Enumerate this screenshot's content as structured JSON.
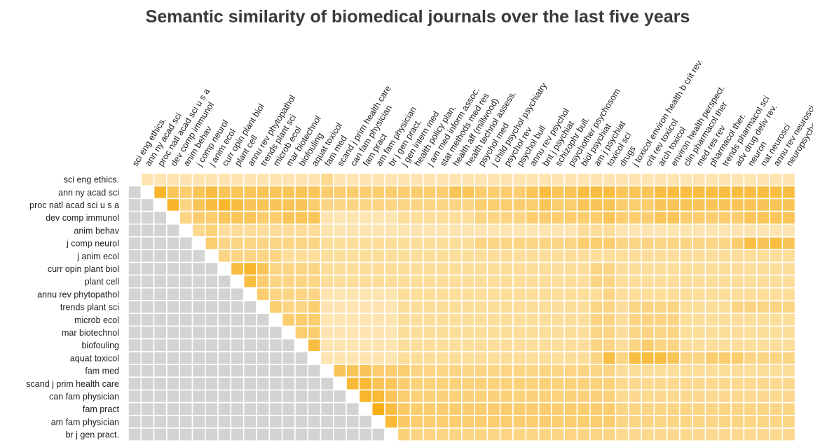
{
  "chart_data": {
    "type": "heatmap",
    "title": "Semantic similarity of biomedical journals over the last five years",
    "col_labels": [
      "sci eng ethics.",
      "ann ny acad sci",
      "proc natl acad sci u s a",
      "dev comp immunol",
      "anim behav",
      "j comp neurol",
      "j anim ecol",
      "curr opin plant biol",
      "plant cell",
      "annu rev phytopathol",
      "trends plant sci",
      "microb ecol",
      "mar biotechnol",
      "biofouling",
      "aquat toxicol",
      "fam med",
      "scand j prim health care",
      "can fam physician",
      "fam pract",
      "am fam physician",
      "br j gen pract.",
      "j gen intern med",
      "health policy plan.",
      "j am med inform assoc.",
      "stat methods med res",
      "health aff (millwood)",
      "health technol assess.",
      "psychol med",
      "j child psychol psychiatry",
      "psychol rev",
      "psychol bull",
      "annu rev psychol",
      "brit j psychiat",
      "schizophr bull.",
      "psychother psychosom",
      "biol psychiat",
      "am j psychiat",
      "toxicol sci",
      "drugs",
      "j toxicol environ health b crit rev.",
      "crit rev toxicol",
      "arch toxicol",
      "environ health perspect.",
      "clin pharmacol ther",
      "med res rev",
      "pharmacol ther.",
      "trends pharmacol sci",
      "adv drug deliv rev.",
      "neuron",
      "nat neurosci",
      "annu rev neurosci",
      "neuropsychopharmacology"
    ],
    "row_labels": [
      "sci eng ethics.",
      "ann ny acad sci",
      "proc natl acad sci u s a",
      "dev comp immunol",
      "anim behav",
      "j comp neurol",
      "j anim ecol",
      "curr opin plant biol",
      "plant cell",
      "annu rev phytopathol",
      "trends plant sci",
      "microb ecol",
      "mar biotechnol",
      "biofouling",
      "aquat toxicol",
      "fam med",
      "scand j prim health care",
      "can fam physician",
      "fam pract",
      "am fam physician",
      "br j gen pract."
    ],
    "matrix": [
      [
        null,
        0.2,
        0.2,
        0.2,
        0.2,
        0.2,
        0.2,
        0.2,
        0.2,
        0.2,
        0.2,
        0.2,
        0.2,
        0.2,
        0.2,
        0.35,
        0.2,
        0.2,
        0.2,
        0.2,
        0.2,
        0.2,
        0.2,
        0.2,
        0.2,
        0.2,
        0.2,
        0.2,
        0.2,
        0.2,
        0.2,
        0.2,
        0.2,
        0.2,
        0.2,
        0.2,
        0.2,
        0.2,
        0.2,
        0.2,
        0.2,
        0.2,
        0.2,
        0.2,
        0.2,
        0.2,
        0.2,
        0.2,
        0.2,
        0.2,
        0.2,
        0.2
      ],
      [
        null,
        null,
        0.8,
        0.6,
        0.5,
        0.6,
        0.7,
        0.6,
        0.6,
        0.6,
        0.6,
        0.6,
        0.6,
        0.6,
        0.6,
        0.5,
        0.5,
        0.5,
        0.5,
        0.5,
        0.5,
        0.5,
        0.5,
        0.5,
        0.5,
        0.6,
        0.6,
        0.5,
        0.5,
        0.5,
        0.5,
        0.6,
        0.7,
        0.6,
        0.6,
        0.7,
        0.7,
        0.7,
        0.6,
        0.6,
        0.6,
        0.7,
        0.7,
        0.7,
        0.7,
        0.7,
        0.7,
        0.7,
        0.7,
        0.7,
        0.7,
        0.7
      ],
      [
        null,
        null,
        null,
        0.8,
        0.4,
        0.6,
        0.7,
        0.8,
        0.7,
        0.6,
        0.6,
        0.6,
        0.6,
        0.6,
        0.5,
        0.4,
        0.4,
        0.4,
        0.4,
        0.4,
        0.4,
        0.4,
        0.4,
        0.4,
        0.4,
        0.4,
        0.4,
        0.5,
        0.5,
        0.5,
        0.5,
        0.5,
        0.6,
        0.5,
        0.5,
        0.6,
        0.6,
        0.6,
        0.5,
        0.5,
        0.5,
        0.6,
        0.6,
        0.6,
        0.6,
        0.6,
        0.6,
        0.6,
        0.6,
        0.6,
        0.6,
        0.6
      ],
      [
        null,
        null,
        null,
        null,
        0.4,
        0.5,
        0.5,
        0.6,
        0.6,
        0.6,
        0.5,
        0.5,
        0.6,
        0.6,
        0.6,
        0.2,
        0.2,
        0.2,
        0.2,
        0.2,
        0.2,
        0.3,
        0.3,
        0.3,
        0.3,
        0.3,
        0.3,
        0.4,
        0.4,
        0.4,
        0.4,
        0.5,
        0.5,
        0.5,
        0.5,
        0.5,
        0.5,
        0.6,
        0.5,
        0.5,
        0.5,
        0.6,
        0.6,
        0.5,
        0.5,
        0.5,
        0.5,
        0.5,
        0.6,
        0.6,
        0.6,
        0.6
      ],
      [
        null,
        null,
        null,
        null,
        null,
        0.35,
        0.45,
        0.3,
        0.3,
        0.3,
        0.3,
        0.3,
        0.3,
        0.3,
        0.3,
        0.2,
        0.2,
        0.2,
        0.2,
        0.2,
        0.2,
        0.2,
        0.2,
        0.2,
        0.2,
        0.2,
        0.2,
        0.2,
        0.2,
        0.2,
        0.2,
        0.2,
        0.2,
        0.2,
        0.2,
        0.3,
        0.3,
        0.3,
        0.2,
        0.2,
        0.2,
        0.2,
        0.2,
        0.2,
        0.2,
        0.2,
        0.2,
        0.2,
        0.2,
        0.2,
        0.2,
        0.2
      ],
      [
        null,
        null,
        null,
        null,
        null,
        null,
        0.5,
        0.4,
        0.4,
        0.4,
        0.4,
        0.4,
        0.4,
        0.4,
        0.4,
        0.3,
        0.3,
        0.3,
        0.3,
        0.3,
        0.3,
        0.3,
        0.3,
        0.3,
        0.3,
        0.3,
        0.3,
        0.4,
        0.4,
        0.4,
        0.4,
        0.4,
        0.4,
        0.4,
        0.4,
        0.5,
        0.5,
        0.5,
        0.4,
        0.4,
        0.4,
        0.4,
        0.4,
        0.4,
        0.4,
        0.4,
        0.4,
        0.5,
        0.7,
        0.6,
        0.7,
        0.6
      ],
      [
        null,
        null,
        null,
        null,
        null,
        null,
        null,
        0.4,
        0.4,
        0.4,
        0.4,
        0.4,
        0.3,
        0.3,
        0.3,
        0.3,
        0.3,
        0.3,
        0.3,
        0.3,
        0.3,
        0.3,
        0.3,
        0.3,
        0.3,
        0.3,
        0.3,
        0.3,
        0.3,
        0.3,
        0.3,
        0.3,
        0.3,
        0.3,
        0.3,
        0.3,
        0.3,
        0.3,
        0.3,
        0.3,
        0.3,
        0.3,
        0.3,
        0.3,
        0.3,
        0.3,
        0.3,
        0.3,
        0.3,
        0.3,
        0.3,
        0.3
      ],
      [
        null,
        null,
        null,
        null,
        null,
        null,
        null,
        null,
        0.7,
        0.8,
        0.6,
        0.4,
        0.4,
        0.4,
        0.4,
        0.3,
        0.3,
        0.3,
        0.3,
        0.3,
        0.3,
        0.3,
        0.3,
        0.3,
        0.3,
        0.3,
        0.3,
        0.3,
        0.3,
        0.3,
        0.3,
        0.3,
        0.3,
        0.3,
        0.3,
        0.3,
        0.4,
        0.4,
        0.3,
        0.3,
        0.3,
        0.3,
        0.3,
        0.3,
        0.3,
        0.3,
        0.3,
        0.3,
        0.3,
        0.3,
        0.3,
        0.3
      ],
      [
        null,
        null,
        null,
        null,
        null,
        null,
        null,
        null,
        null,
        0.7,
        0.5,
        0.4,
        0.4,
        0.4,
        0.4,
        0.3,
        0.3,
        0.3,
        0.3,
        0.3,
        0.3,
        0.3,
        0.3,
        0.3,
        0.3,
        0.3,
        0.3,
        0.3,
        0.3,
        0.3,
        0.3,
        0.3,
        0.3,
        0.3,
        0.3,
        0.3,
        0.4,
        0.4,
        0.3,
        0.3,
        0.3,
        0.3,
        0.3,
        0.3,
        0.3,
        0.3,
        0.3,
        0.3,
        0.3,
        0.3,
        0.3,
        0.3
      ],
      [
        null,
        null,
        null,
        null,
        null,
        null,
        null,
        null,
        null,
        null,
        0.5,
        0.4,
        0.4,
        0.4,
        0.4,
        0.2,
        0.2,
        0.2,
        0.2,
        0.2,
        0.2,
        0.3,
        0.3,
        0.3,
        0.3,
        0.3,
        0.3,
        0.3,
        0.3,
        0.3,
        0.3,
        0.3,
        0.3,
        0.3,
        0.3,
        0.3,
        0.3,
        0.4,
        0.3,
        0.3,
        0.3,
        0.3,
        0.3,
        0.3,
        0.3,
        0.3,
        0.3,
        0.3,
        0.3,
        0.3,
        0.3,
        0.3
      ],
      [
        null,
        null,
        null,
        null,
        null,
        null,
        null,
        null,
        null,
        null,
        null,
        0.5,
        0.4,
        0.4,
        0.5,
        0.2,
        0.2,
        0.2,
        0.2,
        0.2,
        0.2,
        0.3,
        0.3,
        0.3,
        0.3,
        0.3,
        0.3,
        0.3,
        0.3,
        0.3,
        0.3,
        0.3,
        0.3,
        0.3,
        0.3,
        0.3,
        0.4,
        0.4,
        0.3,
        0.4,
        0.4,
        0.4,
        0.4,
        0.3,
        0.3,
        0.3,
        0.3,
        0.4,
        0.4,
        0.4,
        0.4,
        0.4
      ],
      [
        null,
        null,
        null,
        null,
        null,
        null,
        null,
        null,
        null,
        null,
        null,
        null,
        0.5,
        0.5,
        0.5,
        0.2,
        0.2,
        0.2,
        0.2,
        0.2,
        0.2,
        0.3,
        0.3,
        0.3,
        0.3,
        0.3,
        0.3,
        0.3,
        0.3,
        0.3,
        0.3,
        0.3,
        0.3,
        0.3,
        0.3,
        0.3,
        0.4,
        0.4,
        0.3,
        0.4,
        0.4,
        0.4,
        0.4,
        0.3,
        0.3,
        0.3,
        0.3,
        0.3,
        0.3,
        0.3,
        0.3,
        0.3
      ],
      [
        null,
        null,
        null,
        null,
        null,
        null,
        null,
        null,
        null,
        null,
        null,
        null,
        null,
        0.5,
        0.5,
        0.2,
        0.2,
        0.2,
        0.2,
        0.2,
        0.2,
        0.3,
        0.3,
        0.3,
        0.3,
        0.3,
        0.3,
        0.3,
        0.3,
        0.3,
        0.3,
        0.3,
        0.3,
        0.3,
        0.3,
        0.3,
        0.4,
        0.4,
        0.3,
        0.4,
        0.4,
        0.4,
        0.4,
        0.3,
        0.3,
        0.3,
        0.3,
        0.3,
        0.3,
        0.3,
        0.3,
        0.3
      ],
      [
        null,
        null,
        null,
        null,
        null,
        null,
        null,
        null,
        null,
        null,
        null,
        null,
        null,
        null,
        0.7,
        0.2,
        0.2,
        0.2,
        0.2,
        0.2,
        0.2,
        0.3,
        0.3,
        0.3,
        0.3,
        0.3,
        0.3,
        0.3,
        0.3,
        0.3,
        0.3,
        0.3,
        0.3,
        0.3,
        0.3,
        0.3,
        0.4,
        0.4,
        0.3,
        0.4,
        0.5,
        0.4,
        0.4,
        0.3,
        0.3,
        0.3,
        0.3,
        0.3,
        0.3,
        0.3,
        0.3,
        0.3
      ],
      [
        null,
        null,
        null,
        null,
        null,
        null,
        null,
        null,
        null,
        null,
        null,
        null,
        null,
        null,
        null,
        0.2,
        0.2,
        0.2,
        0.2,
        0.2,
        0.2,
        0.3,
        0.3,
        0.3,
        0.3,
        0.3,
        0.3,
        0.3,
        0.3,
        0.3,
        0.3,
        0.3,
        0.3,
        0.3,
        0.3,
        0.3,
        0.4,
        0.7,
        0.4,
        0.7,
        0.7,
        0.7,
        0.6,
        0.4,
        0.4,
        0.5,
        0.5,
        0.5,
        0.4,
        0.4,
        0.4,
        0.4
      ],
      [
        null,
        null,
        null,
        null,
        null,
        null,
        null,
        null,
        null,
        null,
        null,
        null,
        null,
        null,
        null,
        null,
        0.6,
        0.6,
        0.6,
        0.5,
        0.5,
        0.5,
        0.4,
        0.4,
        0.4,
        0.4,
        0.4,
        0.4,
        0.4,
        0.4,
        0.4,
        0.4,
        0.4,
        0.4,
        0.4,
        0.4,
        0.4,
        0.4,
        0.3,
        0.3,
        0.3,
        0.3,
        0.3,
        0.3,
        0.3,
        0.3,
        0.3,
        0.3,
        0.3,
        0.3,
        0.3,
        0.3
      ],
      [
        null,
        null,
        null,
        null,
        null,
        null,
        null,
        null,
        null,
        null,
        null,
        null,
        null,
        null,
        null,
        null,
        null,
        0.75,
        0.75,
        0.6,
        0.6,
        0.5,
        0.45,
        0.45,
        0.45,
        0.45,
        0.45,
        0.45,
        0.45,
        0.45,
        0.45,
        0.45,
        0.45,
        0.45,
        0.45,
        0.45,
        0.45,
        0.45,
        0.35,
        0.35,
        0.35,
        0.35,
        0.35,
        0.35,
        0.35,
        0.35,
        0.35,
        0.35,
        0.35,
        0.35,
        0.35,
        0.35
      ],
      [
        null,
        null,
        null,
        null,
        null,
        null,
        null,
        null,
        null,
        null,
        null,
        null,
        null,
        null,
        null,
        null,
        null,
        null,
        0.8,
        0.75,
        0.6,
        0.5,
        0.45,
        0.45,
        0.45,
        0.45,
        0.45,
        0.45,
        0.45,
        0.45,
        0.45,
        0.45,
        0.45,
        0.45,
        0.45,
        0.45,
        0.45,
        0.45,
        0.35,
        0.35,
        0.35,
        0.35,
        0.35,
        0.35,
        0.35,
        0.35,
        0.35,
        0.35,
        0.35,
        0.35,
        0.35,
        0.35
      ],
      [
        null,
        null,
        null,
        null,
        null,
        null,
        null,
        null,
        null,
        null,
        null,
        null,
        null,
        null,
        null,
        null,
        null,
        null,
        null,
        0.9,
        0.7,
        0.55,
        0.5,
        0.5,
        0.5,
        0.5,
        0.5,
        0.5,
        0.5,
        0.5,
        0.5,
        0.5,
        0.5,
        0.5,
        0.5,
        0.5,
        0.5,
        0.5,
        0.4,
        0.4,
        0.4,
        0.4,
        0.4,
        0.4,
        0.4,
        0.4,
        0.4,
        0.4,
        0.4,
        0.4,
        0.4,
        0.4
      ],
      [
        null,
        null,
        null,
        null,
        null,
        null,
        null,
        null,
        null,
        null,
        null,
        null,
        null,
        null,
        null,
        null,
        null,
        null,
        null,
        null,
        0.75,
        0.55,
        0.5,
        0.5,
        0.5,
        0.5,
        0.5,
        0.5,
        0.5,
        0.5,
        0.5,
        0.5,
        0.5,
        0.5,
        0.5,
        0.5,
        0.5,
        0.5,
        0.4,
        0.4,
        0.4,
        0.4,
        0.4,
        0.4,
        0.4,
        0.4,
        0.4,
        0.4,
        0.4,
        0.4,
        0.4,
        0.4
      ],
      [
        null,
        null,
        null,
        null,
        null,
        null,
        null,
        null,
        null,
        null,
        null,
        null,
        null,
        null,
        null,
        null,
        null,
        null,
        null,
        null,
        null,
        0.45,
        0.4,
        0.4,
        0.4,
        0.4,
        0.4,
        0.4,
        0.4,
        0.4,
        0.4,
        0.4,
        0.4,
        0.4,
        0.4,
        0.4,
        0.4,
        0.4,
        0.35,
        0.35,
        0.35,
        0.35,
        0.35,
        0.35,
        0.35,
        0.35,
        0.35,
        0.35,
        0.35,
        0.35,
        0.35,
        0.35
      ]
    ],
    "value_range": [
      0,
      1
    ],
    "colors": {
      "low": "#fff4dc",
      "high": "#f7a600",
      "diagonal": "#ffffff",
      "lower_triangle": "#d3d3d3"
    },
    "grid": true,
    "legend": "none"
  }
}
